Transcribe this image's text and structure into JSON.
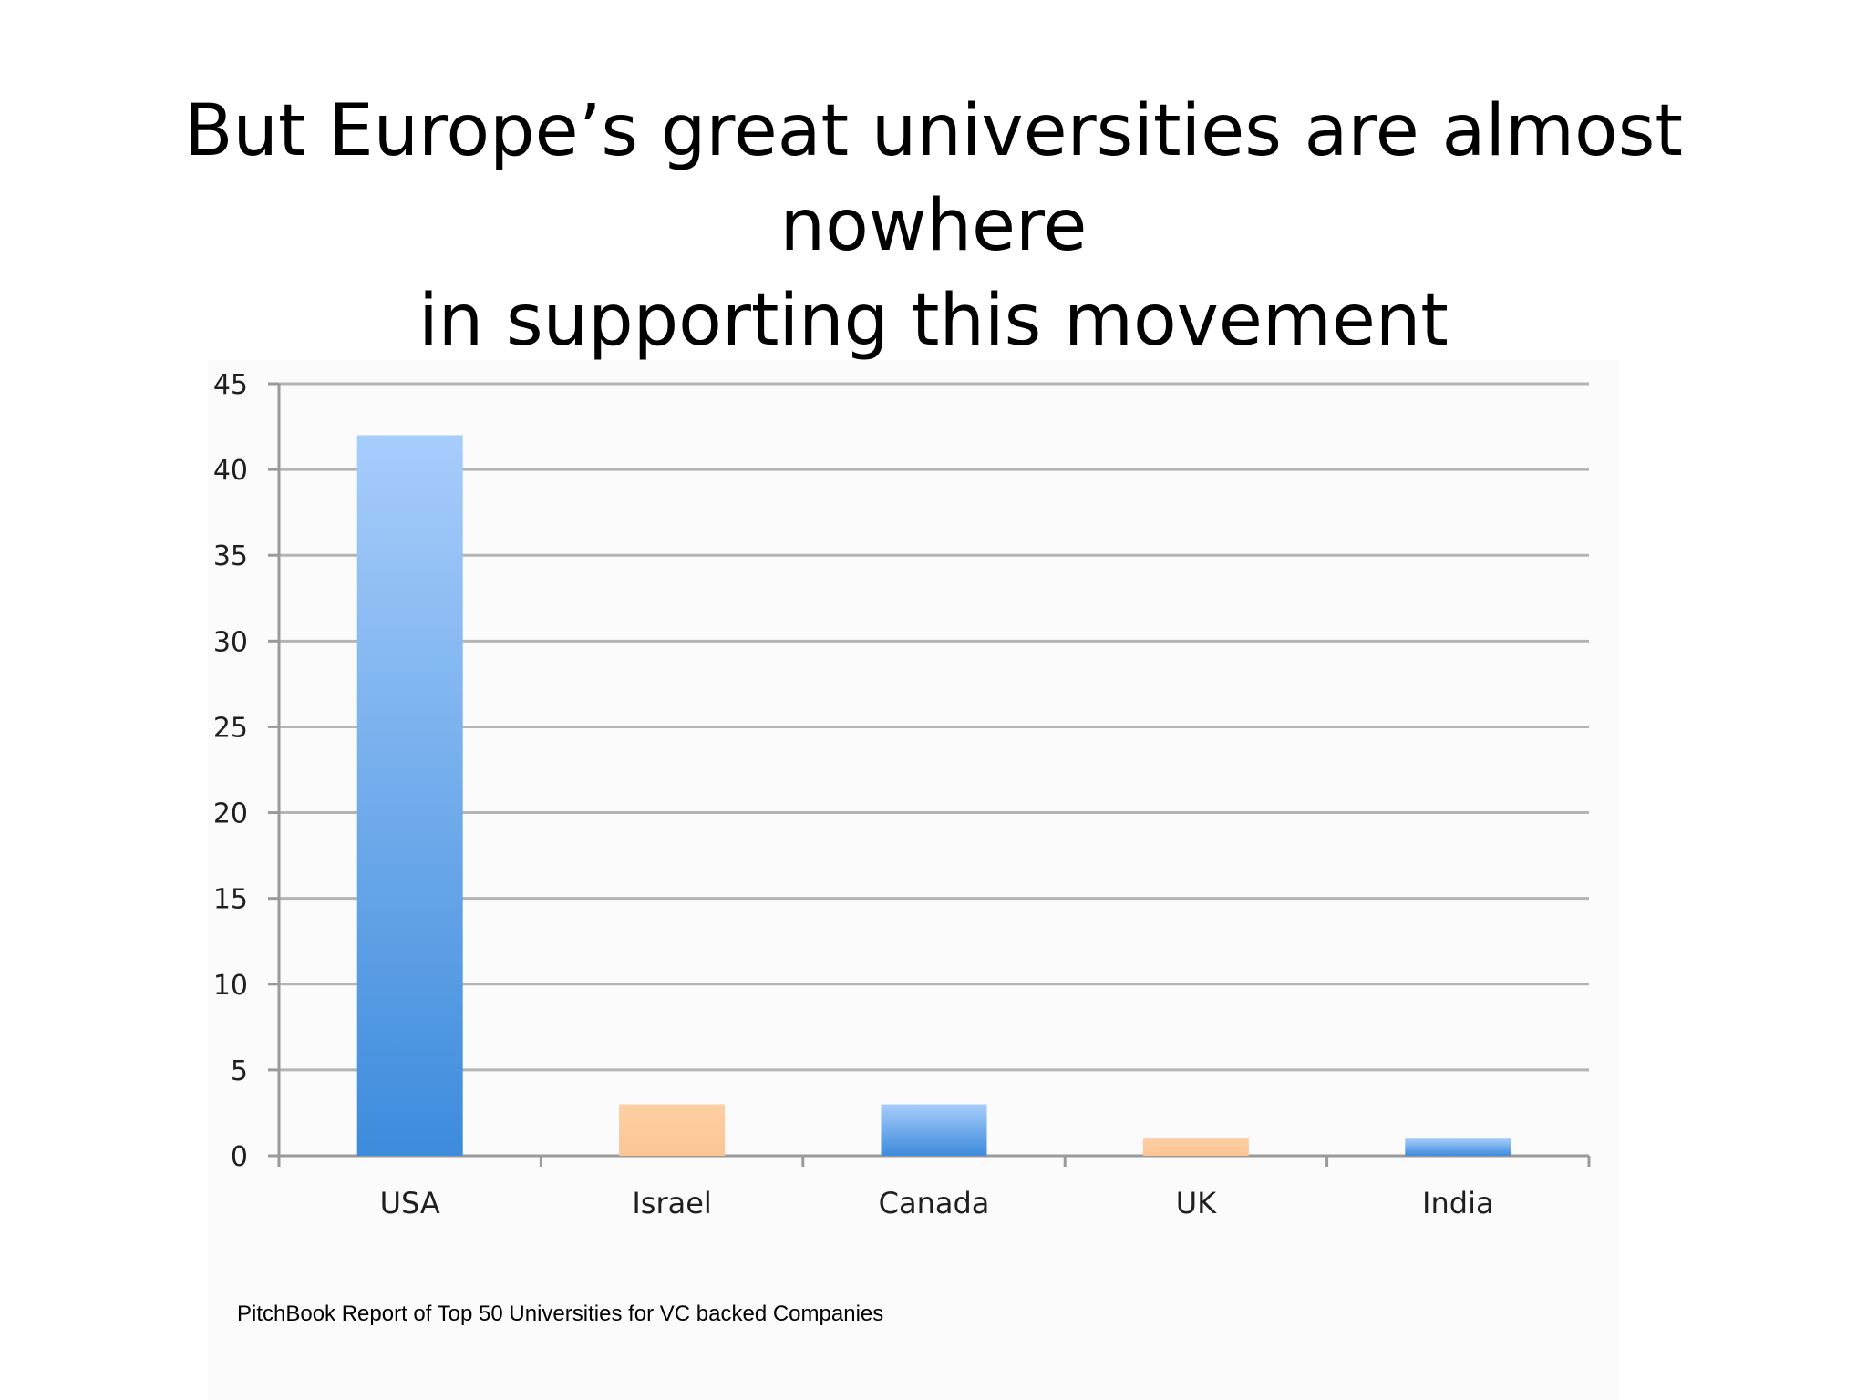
{
  "slide": {
    "title_line1": "But Europe’s great universities are almost nowhere",
    "title_line2": "in supporting this movement",
    "source_note": "PitchBook Report of Top 50 Universities for VC backed Companies"
  },
  "chart_data": {
    "type": "bar",
    "title": "",
    "xlabel": "",
    "ylabel": "",
    "categories": [
      "USA",
      "Israel",
      "Canada",
      "UK",
      "India"
    ],
    "values": [
      42,
      3,
      3,
      1,
      1
    ],
    "ylim": [
      0,
      45
    ],
    "yticks": [
      0,
      5,
      10,
      15,
      20,
      25,
      30,
      35,
      40,
      45
    ],
    "grid": true,
    "legend": "none",
    "bar_colors": [
      "#4a90d9",
      "#fcc99b",
      "#4a90d9",
      "#fcc99b",
      "#4a90d9"
    ],
    "bar_gradient_top": {
      "#4a90d9": "#a7cdfb",
      "#fcc99b": "#fdcfa4"
    },
    "bar_gradient_bottom": {
      "#4a90d9": "#3d8bdc",
      "#fcc99b": "#fbc594"
    },
    "grid_color": "#b4b4b4",
    "axis_color": "#9a9a9a"
  }
}
